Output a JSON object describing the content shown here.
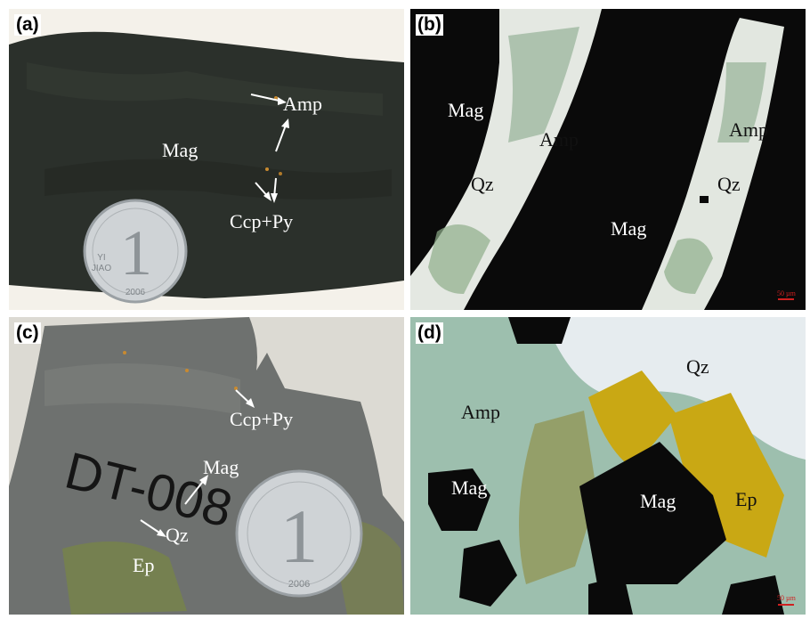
{
  "panels": {
    "a": {
      "label": "(a)",
      "minerals": {
        "mag": "Mag",
        "amp": "Amp",
        "ccp_py": "Ccp+Py"
      },
      "coin": {
        "digit": "1",
        "latin": "YI\nJIAO",
        "year": "2006"
      }
    },
    "b": {
      "label": "(b)",
      "minerals": {
        "mag_1": "Mag",
        "amp_1": "Amp",
        "qz_1": "Qz",
        "mag_2": "Mag",
        "amp_2": "Amp",
        "qz_2": "Qz"
      },
      "scale": "50 µm"
    },
    "c": {
      "label": "(c)",
      "minerals": {
        "ccp_py": "Ccp+Py",
        "mag": "Mag",
        "qz": "Qz",
        "ep": "Ep"
      },
      "handwriting": "DT-008",
      "coin": {
        "digit": "1",
        "year": "2006"
      }
    },
    "d": {
      "label": "(d)",
      "minerals": {
        "qz": "Qz",
        "amp": "Amp",
        "mag_1": "Mag",
        "mag_2": "Mag",
        "ep": "Ep"
      },
      "scale": "50 µm"
    }
  },
  "colors": {
    "dark_rock": "#2a2e2a",
    "grey_rock": "#6f7270",
    "magnetite": "#0a0a0a",
    "amphibole": "#9fbfa8",
    "quartz": "#e8ede8",
    "epidote": "#c9a814",
    "label": "#ffffff"
  }
}
